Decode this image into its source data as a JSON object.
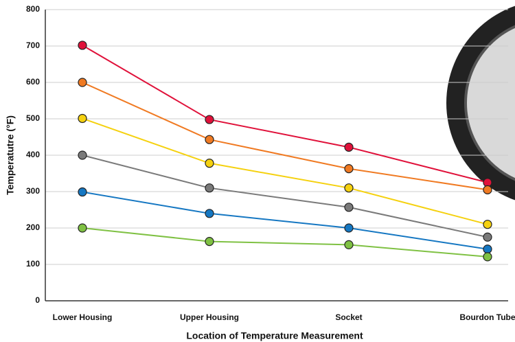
{
  "chart_data": {
    "type": "line",
    "x_label": "Location of Temperature Measurement",
    "y_label": "Temperatutre (°F)",
    "categories": [
      "Lower Housing",
      "Upper Housing",
      "Socket",
      "Bourdon Tube"
    ],
    "series": [
      {
        "color": "#e0113a",
        "values": [
          702,
          498,
          422,
          325
        ]
      },
      {
        "color": "#f07a22",
        "values": [
          600,
          443,
          363,
          305
        ]
      },
      {
        "color": "#f5d10f",
        "values": [
          501,
          378,
          310,
          210
        ]
      },
      {
        "color": "#7a7a7a",
        "values": [
          400,
          310,
          257,
          175
        ]
      },
      {
        "color": "#1577c2",
        "values": [
          299,
          240,
          200,
          142
        ]
      },
      {
        "color": "#7fc143",
        "values": [
          200,
          163,
          154,
          121
        ]
      }
    ],
    "ylim": [
      0,
      800
    ],
    "yticks": [
      0,
      100,
      200,
      300,
      400,
      500,
      600,
      700,
      800
    ],
    "grid": true
  }
}
